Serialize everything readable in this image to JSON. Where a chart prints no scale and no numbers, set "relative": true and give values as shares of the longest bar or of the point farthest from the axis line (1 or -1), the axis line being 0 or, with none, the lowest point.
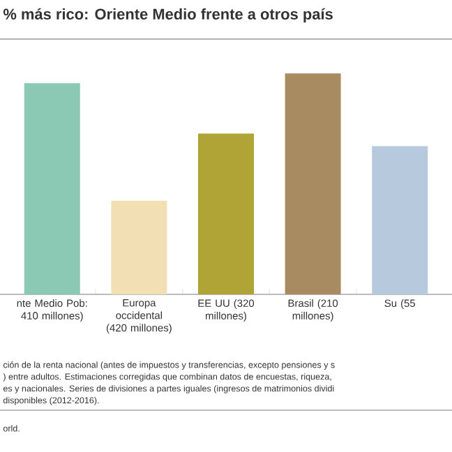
{
  "chart_data": {
    "type": "bar",
    "title": "% más rico: Oriente Medio frente a otros país",
    "categories": [
      "nte Medio Pob: 410 millones)",
      "Europa occidental (420 millones)",
      "EE UU (320 millones)",
      "Brasil (210 millones)",
      "Su (55"
    ],
    "values": [
      0.956,
      0.424,
      0.728,
      1,
      0.671
    ],
    "colors": [
      "#8cc9b5",
      "#f3dfb4",
      "#b0a437",
      "#a98b62",
      "#b7c9dc"
    ],
    "relative": true,
    "annotations": [
      "ción de la renta nacional (antes de impuestos y transferencias, excepto pensiones y s",
      ") entre adultos. Estimaciones corregidas que combinan datos de encuestas, riqueza,",
      "es y nacionales. Series de divisiones a partes iguales (ingresos de matrimonios dividi",
      "disponibles (2012-2016).",
      "orld."
    ]
  }
}
